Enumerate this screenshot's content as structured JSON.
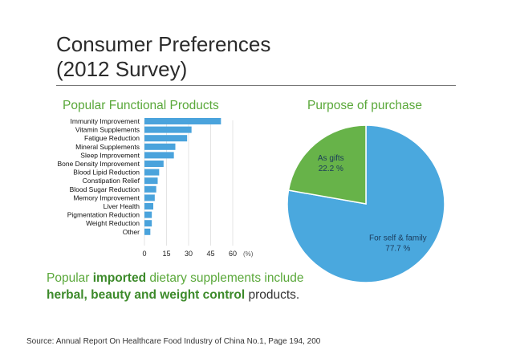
{
  "title_line1": "Consumer Preferences",
  "title_line2": "(2012 Survey)",
  "colors": {
    "bar": "#4aa3dc",
    "green": "#5aa83a",
    "self": "#4aa8de",
    "gifts": "#67b349"
  },
  "chart_data": [
    {
      "type": "bar",
      "orientation": "horizontal",
      "title": "Popular Functional Products",
      "categories": [
        "Immunity Improvement",
        "Vitamin Supplements",
        "Fatigue Reduction",
        "Mineral Supplements",
        "Sleep Improvement",
        "Bone Density Improvement",
        "Blood Lipid Reduction",
        "Constipation Relief",
        "Blood Sugar Reduction",
        "Memory Improvement",
        "Liver Health",
        "Pigmentation Reduction",
        "Weight Reduction",
        "Other"
      ],
      "values": [
        52,
        32,
        29,
        21,
        20,
        13,
        10,
        9,
        8,
        7,
        6,
        5,
        5,
        4
      ],
      "xticks": [
        0,
        15,
        30,
        45,
        60
      ],
      "xlim": [
        0,
        60
      ],
      "unit_label": "(%)"
    },
    {
      "type": "pie",
      "title": "Purpose of purchase",
      "slices": [
        {
          "label": "For self & family",
          "value": 77.7,
          "value_text": "77.7 %"
        },
        {
          "label": "As gifts",
          "value": 22.2,
          "value_text": "22.2 %"
        }
      ]
    }
  ],
  "note": {
    "t1": "Popular ",
    "b1": "imported",
    "t2": " dietary supplements include",
    "b2": "herbal, beauty and weight control",
    "t3": " products."
  },
  "source": "Source: Annual Report On Healthcare Food Industry of China  No.1, Page 194, 200"
}
